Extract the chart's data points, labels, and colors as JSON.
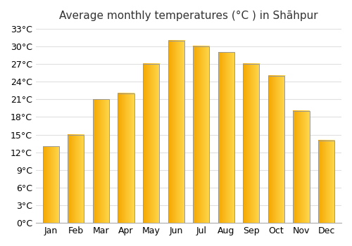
{
  "title": "Average monthly temperatures (°C ) in Shāhpur",
  "months": [
    "Jan",
    "Feb",
    "Mar",
    "Apr",
    "May",
    "Jun",
    "Jul",
    "Aug",
    "Sep",
    "Oct",
    "Nov",
    "Dec"
  ],
  "values": [
    13,
    15,
    21,
    22,
    27,
    31,
    30,
    29,
    27,
    25,
    19,
    14
  ],
  "ylim": [
    0,
    33
  ],
  "yticks": [
    0,
    3,
    6,
    9,
    12,
    15,
    18,
    21,
    24,
    27,
    30,
    33
  ],
  "ytick_labels": [
    "0°C",
    "3°C",
    "6°C",
    "9°C",
    "12°C",
    "15°C",
    "18°C",
    "21°C",
    "24°C",
    "27°C",
    "30°C",
    "33°C"
  ],
  "bar_color_left": "#F5A800",
  "bar_color_right": "#FFD84D",
  "bar_edge_color": "#999999",
  "background_color": "#ffffff",
  "grid_color": "#e0e0e0",
  "title_fontsize": 11,
  "tick_fontsize": 9,
  "bar_width": 0.65
}
